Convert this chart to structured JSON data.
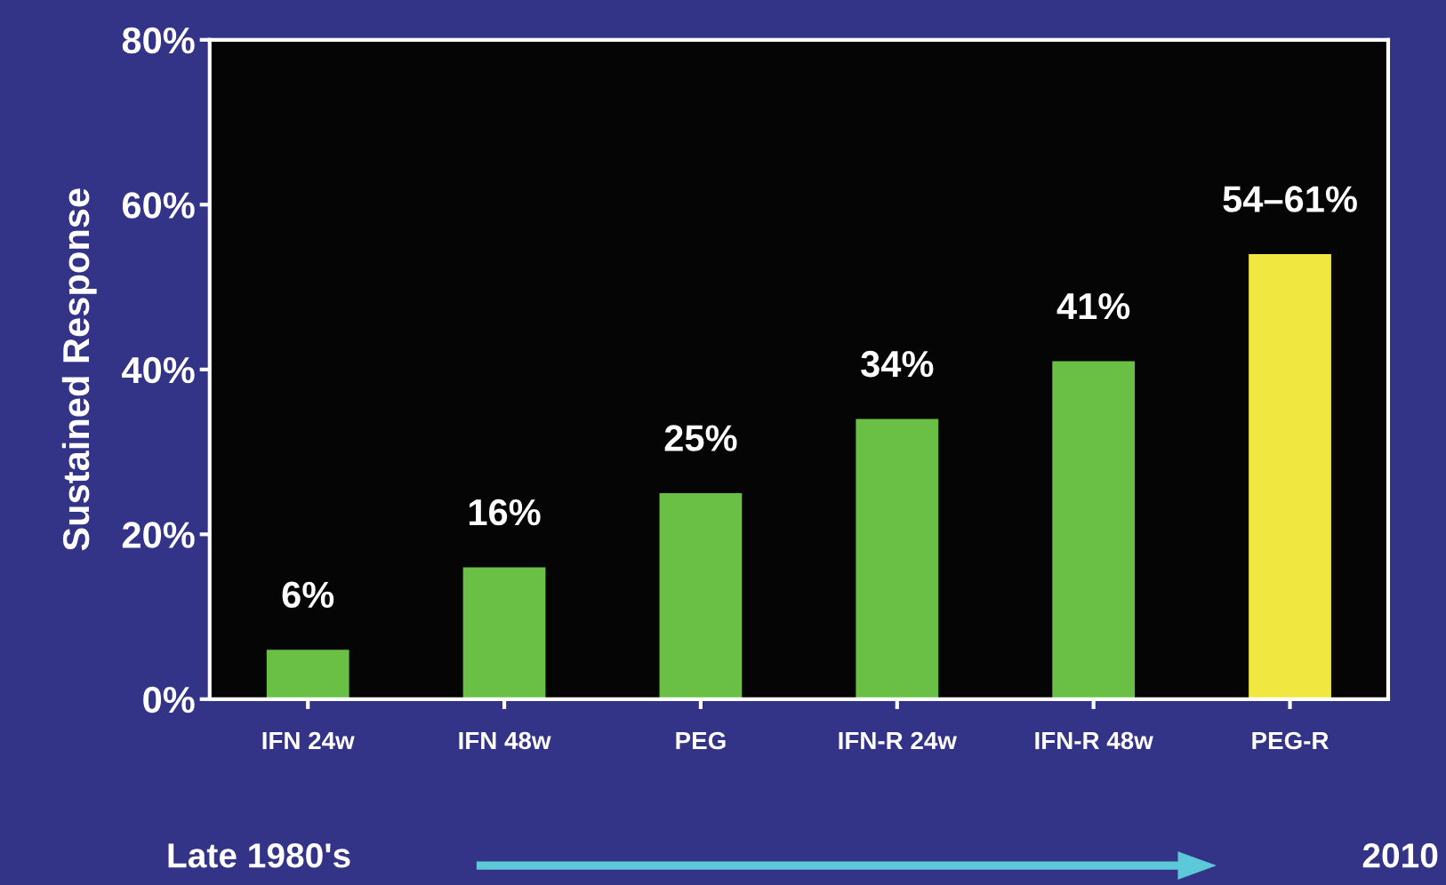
{
  "chart_data": {
    "type": "bar",
    "ylabel": "Sustained Response",
    "categories": [
      "IFN 24w",
      "IFN 48w",
      "PEG",
      "IFN-R 24w",
      "IFN-R 48w",
      "PEG-R"
    ],
    "values": [
      6,
      16,
      25,
      34,
      41,
      54
    ],
    "colors": [
      "#6abf45",
      "#6abf45",
      "#6abf45",
      "#6abf45",
      "#6abf45",
      "#f0e840"
    ],
    "value_labels": [
      "6%",
      "16%",
      "25%",
      "34%",
      "41%",
      "54–61%"
    ],
    "ylim": [
      0,
      80
    ],
    "yticks": [
      {
        "value": 0,
        "label": "0%"
      },
      {
        "value": 20,
        "label": "20%"
      },
      {
        "value": 40,
        "label": "40%"
      },
      {
        "value": 60,
        "label": "60%"
      },
      {
        "value": 80,
        "label": "80%"
      }
    ],
    "grid": false,
    "legend": false,
    "annotations": [
      "Late 1980's",
      "2010"
    ]
  }
}
